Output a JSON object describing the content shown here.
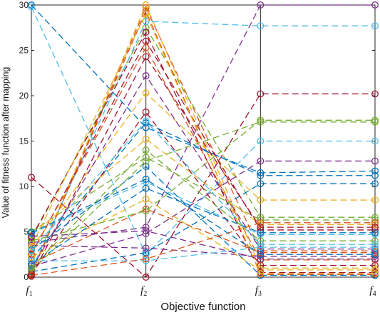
{
  "chart_data": {
    "type": "line",
    "title": "",
    "xlabel": "Objective function",
    "ylabel": "Value of fitness function after mapping",
    "ylim": [
      0,
      30
    ],
    "yticks": [
      0,
      5,
      10,
      15,
      20,
      25,
      30
    ],
    "grid": false,
    "legend": "none",
    "line_style": "dashed",
    "marker": "open-circle",
    "categories": [
      {
        "base": "f",
        "sub": "1"
      },
      {
        "base": "f",
        "sub": "2"
      },
      {
        "base": "f",
        "sub": "3"
      },
      {
        "base": "f",
        "sub": "4"
      }
    ],
    "series": [
      {
        "color": "#0072BD",
        "values": [
          30,
          16.5,
          11.5,
          11.7
        ]
      },
      {
        "color": "#D95319",
        "values": [
          0.3,
          29.7,
          2.9,
          2.9
        ]
      },
      {
        "color": "#EDB120",
        "values": [
          0.5,
          30,
          1.0,
          1.0
        ]
      },
      {
        "color": "#7E2F8E",
        "values": [
          3.8,
          5.5,
          30,
          30
        ]
      },
      {
        "color": "#77AC30",
        "values": [
          4.2,
          27.5,
          6.6,
          6.6
        ]
      },
      {
        "color": "#4DBEEE",
        "values": [
          29.8,
          2.5,
          15,
          15
        ]
      },
      {
        "color": "#A2142F",
        "values": [
          11,
          0,
          20.2,
          20.2
        ]
      },
      {
        "color": "#0072BD",
        "values": [
          2.0,
          17,
          11.2,
          11.2
        ]
      },
      {
        "color": "#D95319",
        "values": [
          1.5,
          7.5,
          2.7,
          2.7
        ]
      },
      {
        "color": "#EDB120",
        "values": [
          3.2,
          20.3,
          8.5,
          8.5
        ]
      },
      {
        "color": "#7E2F8E",
        "values": [
          1.2,
          4.8,
          12.8,
          12.8
        ]
      },
      {
        "color": "#77AC30",
        "values": [
          5.0,
          13.2,
          6.3,
          6.3
        ]
      },
      {
        "color": "#4DBEEE",
        "values": [
          0.8,
          28.2,
          27.7,
          27.7
        ]
      },
      {
        "color": "#A2142F",
        "values": [
          2.5,
          26,
          5.2,
          5.2
        ]
      },
      {
        "color": "#0072BD",
        "values": [
          0.6,
          2.7,
          10.3,
          10.3
        ]
      },
      {
        "color": "#D95319",
        "values": [
          0.4,
          29.3,
          0.3,
          0.3
        ]
      },
      {
        "color": "#EDB120",
        "values": [
          4.6,
          15.2,
          5.8,
          5.8
        ]
      },
      {
        "color": "#7E2F8E",
        "values": [
          3.5,
          3.2,
          2.3,
          2.3
        ]
      },
      {
        "color": "#77AC30",
        "values": [
          4.0,
          7.3,
          17.3,
          17.3
        ]
      },
      {
        "color": "#4DBEEE",
        "values": [
          4.8,
          10.5,
          4.7,
          4.7
        ]
      },
      {
        "color": "#A2142F",
        "values": [
          0.3,
          18.2,
          1.3,
          1.3
        ]
      },
      {
        "color": "#0072BD",
        "values": [
          3.0,
          12.2,
          0.2,
          0.2
        ]
      },
      {
        "color": "#D95319",
        "values": [
          2.6,
          25.3,
          1.9,
          1.9
        ]
      },
      {
        "color": "#EDB120",
        "values": [
          2.2,
          8.6,
          0.8,
          0.8
        ]
      },
      {
        "color": "#7E2F8E",
        "values": [
          0.9,
          22.2,
          3.1,
          3.1
        ]
      },
      {
        "color": "#77AC30",
        "values": [
          0.7,
          12.8,
          17.1,
          17.1
        ]
      },
      {
        "color": "#4DBEEE",
        "values": [
          1.8,
          1.8,
          3.3,
          3.3
        ]
      },
      {
        "color": "#A2142F",
        "values": [
          4.4,
          27.0,
          0.5,
          0.5
        ]
      },
      {
        "color": "#0072BD",
        "values": [
          1.4,
          9.8,
          4.9,
          4.9
        ]
      },
      {
        "color": "#D95319",
        "values": [
          0.2,
          2.0,
          6.0,
          6.0
        ]
      },
      {
        "color": "#EDB120",
        "values": [
          3.4,
          29.0,
          0.4,
          0.4
        ]
      },
      {
        "color": "#7E2F8E",
        "values": [
          4.5,
          5.1,
          2.0,
          2.0
        ]
      },
      {
        "color": "#77AC30",
        "values": [
          1.0,
          14.0,
          4.0,
          4.0
        ]
      },
      {
        "color": "#4DBEEE",
        "values": [
          2.9,
          17.2,
          3.6,
          3.6
        ]
      },
      {
        "color": "#A2142F",
        "values": [
          0.1,
          24.3,
          5.5,
          5.5
        ]
      },
      {
        "color": "#0072BD",
        "values": [
          4.9,
          10.8,
          2.5,
          2.5
        ]
      }
    ]
  }
}
